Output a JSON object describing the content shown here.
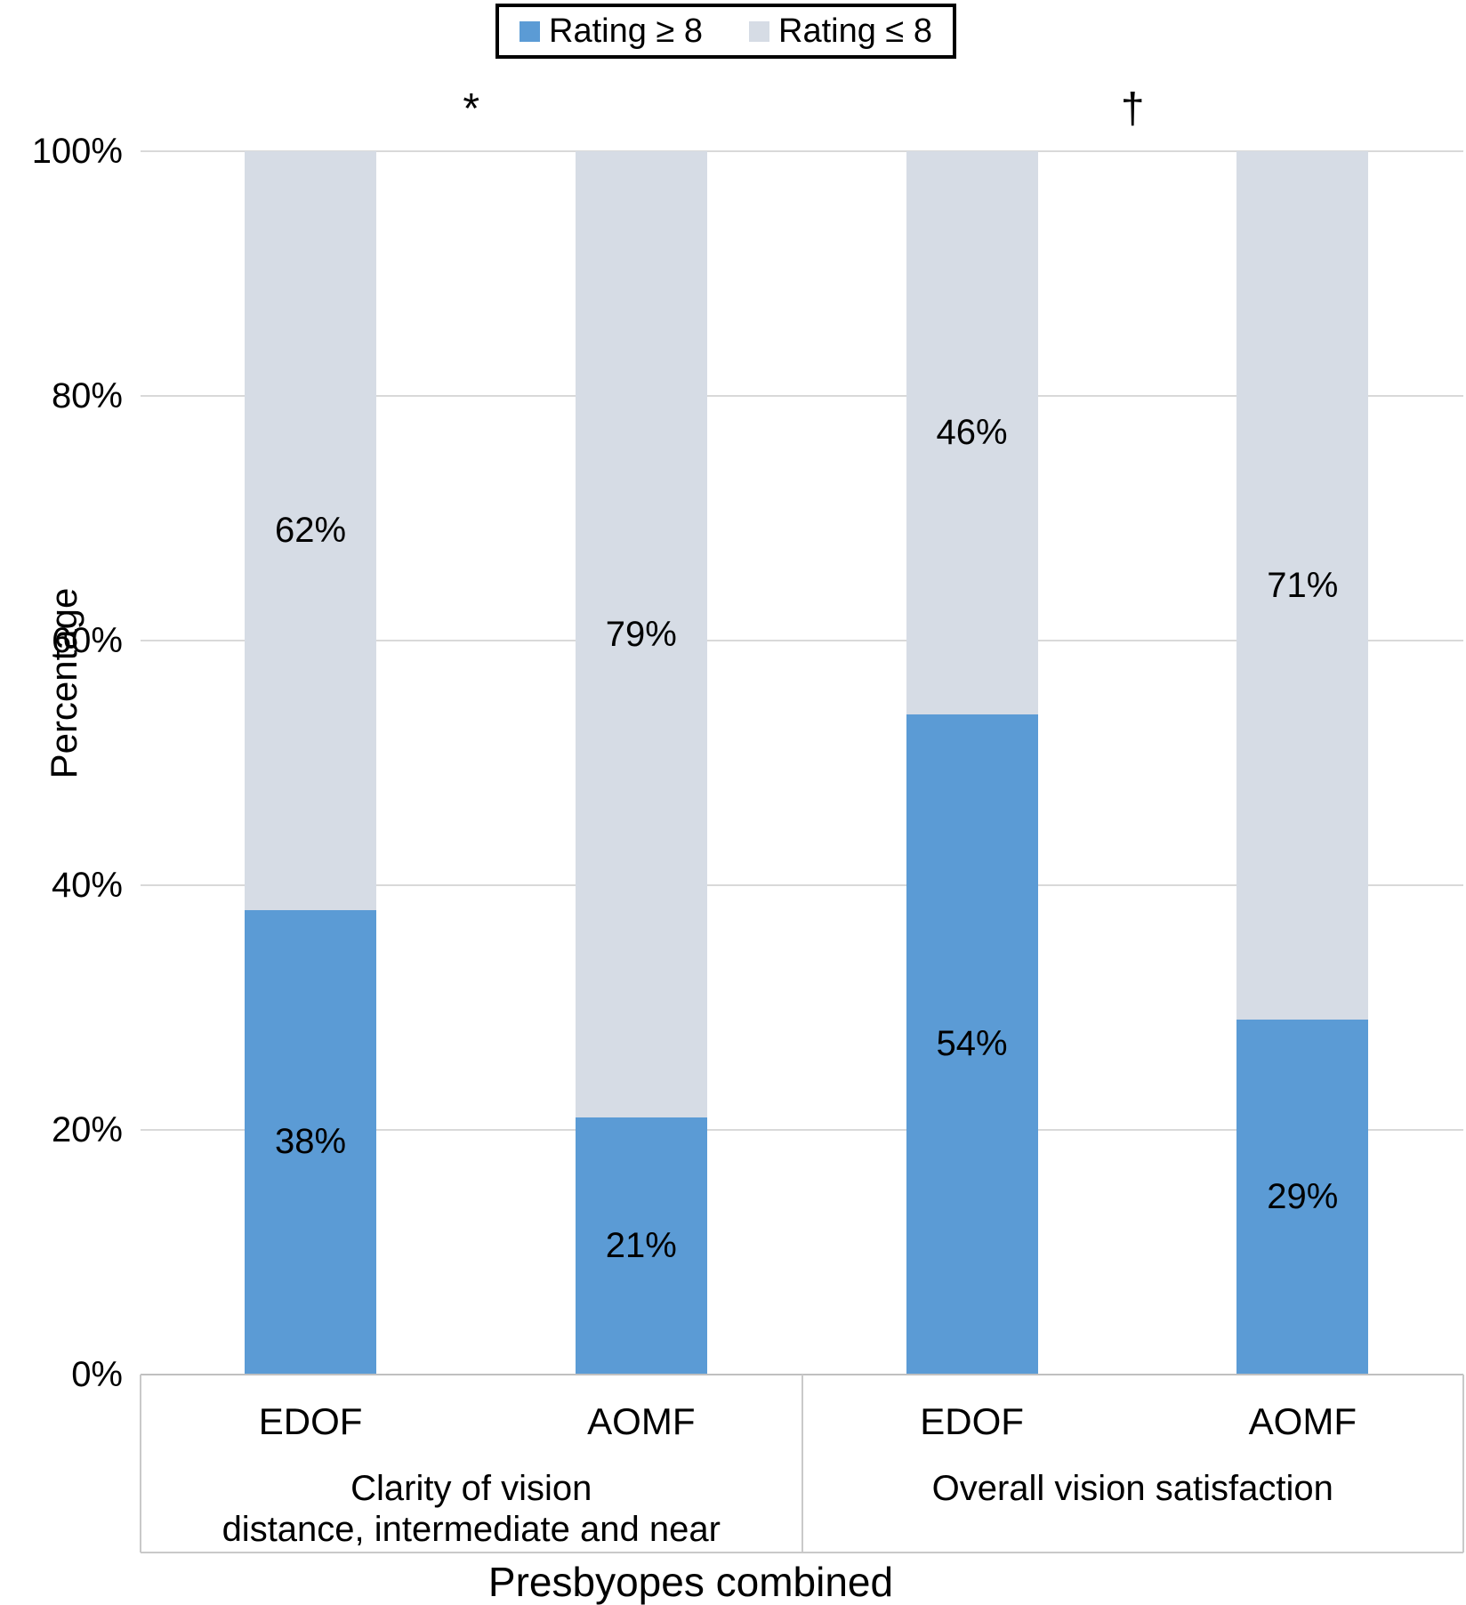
{
  "legend": {
    "items": [
      {
        "label": "Rating ≥ 8",
        "color": "#5B9BD5"
      },
      {
        "label": "Rating ≤ 8",
        "color": "#D6DCE5"
      }
    ]
  },
  "y_axis": {
    "title": "Percentage",
    "tick_labels": [
      "0%",
      "20%",
      "40%",
      "60%",
      "80%",
      "100%"
    ]
  },
  "x_axis": {
    "title": "Presbyopes combined"
  },
  "chart_data": {
    "type": "bar",
    "stacked": true,
    "title": "",
    "xlabel": "Presbyopes combined",
    "ylabel": "Percentage",
    "ylim": [
      0,
      100
    ],
    "yticks": [
      0,
      20,
      40,
      60,
      80,
      100
    ],
    "grid": "horizontal",
    "legend_position": "top-center",
    "categories": [
      "EDOF",
      "AOMF",
      "EDOF",
      "AOMF"
    ],
    "series": [
      {
        "name": "Rating ≥ 8",
        "color": "#5B9BD5",
        "values": [
          38,
          21,
          54,
          29
        ]
      },
      {
        "name": "Rating ≤ 8",
        "color": "#D6DCE5",
        "values": [
          62,
          79,
          46,
          71
        ]
      }
    ],
    "groups": [
      {
        "label_lines": [
          "Clarity of vision",
          "distance, intermediate and near"
        ],
        "annotation": "*",
        "bars": [
          {
            "category": "EDOF",
            "segments": [
              {
                "series": "Rating ≥ 8",
                "value": 38,
                "label": "38%"
              },
              {
                "series": "Rating ≤ 8",
                "value": 62,
                "label": "62%"
              }
            ]
          },
          {
            "category": "AOMF",
            "segments": [
              {
                "series": "Rating ≥ 8",
                "value": 21,
                "label": "21%"
              },
              {
                "series": "Rating ≤ 8",
                "value": 79,
                "label": "79%"
              }
            ]
          }
        ]
      },
      {
        "label_lines": [
          "Overall vision satisfaction"
        ],
        "annotation": "†",
        "bars": [
          {
            "category": "EDOF",
            "segments": [
              {
                "series": "Rating ≥ 8",
                "value": 54,
                "label": "54%"
              },
              {
                "series": "Rating ≤ 8",
                "value": 46,
                "label": "46%"
              }
            ]
          },
          {
            "category": "AOMF",
            "segments": [
              {
                "series": "Rating ≥ 8",
                "value": 29,
                "label": "29%"
              },
              {
                "series": "Rating ≤ 8",
                "value": 71,
                "label": "71%"
              }
            ]
          }
        ]
      }
    ],
    "colors": {
      "rating_ge_8": "#5B9BD5",
      "rating_le_8": "#D6DCE5",
      "gridline": "#D9D9D9"
    }
  }
}
